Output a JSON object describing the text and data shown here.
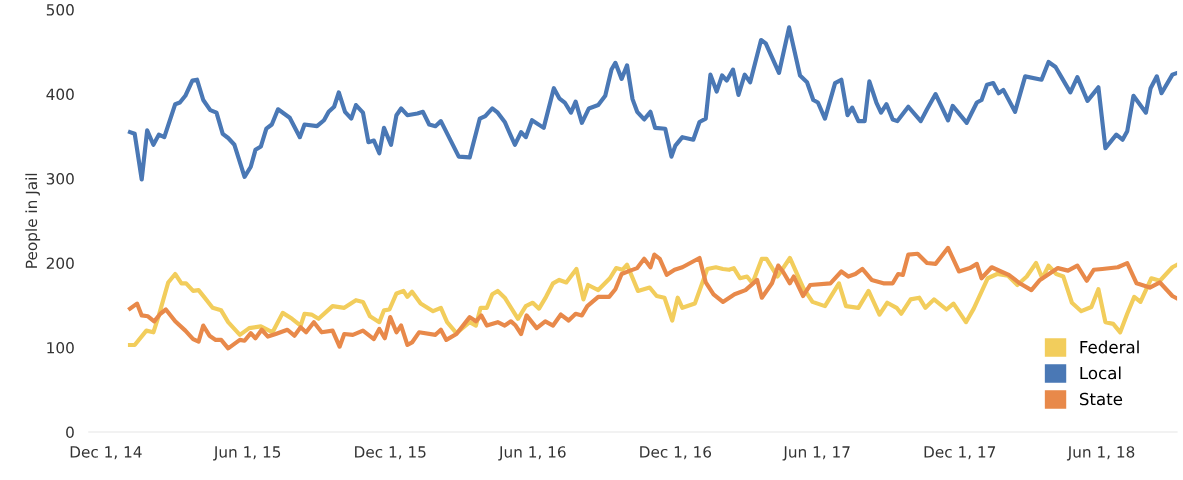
{
  "chart_data": {
    "type": "line",
    "ylabel": "People in Jail",
    "xlim": [
      "2014-11-09",
      "2018-09-06"
    ],
    "ylim": [
      0,
      500
    ],
    "yticks": [
      0,
      100,
      200,
      300,
      400,
      500
    ],
    "xticks": [
      {
        "value": "2014-12-01",
        "label": "Dec 1, 14"
      },
      {
        "value": "2015-06-01",
        "label": "Jun 1, 15"
      },
      {
        "value": "2015-12-01",
        "label": "Dec 1, 15"
      },
      {
        "value": "2016-06-01",
        "label": "Jun 1, 16"
      },
      {
        "value": "2016-12-01",
        "label": "Dec 1, 16"
      },
      {
        "value": "2017-06-01",
        "label": "Jun 1, 17"
      },
      {
        "value": "2017-12-01",
        "label": "Dec 1, 17"
      },
      {
        "value": "2018-06-01",
        "label": "Jun 1, 18"
      }
    ],
    "grid": false,
    "legend": "bottom right",
    "marker": "none",
    "line_style": "solid",
    "series": [
      {
        "name": "Federal",
        "color": "#f2cd5c",
        "x": [
          "2015-01-01",
          "2015-01-07",
          "2015-01-22",
          "2015-01-31",
          "2015-02-07",
          "2015-02-19",
          "2015-02-28",
          "2015-03-08",
          "2015-03-14",
          "2015-03-23",
          "2015-03-30",
          "2015-04-06",
          "2015-04-17",
          "2015-04-28",
          "2015-05-07",
          "2015-05-22",
          "2015-06-03",
          "2015-06-18",
          "2015-07-03",
          "2015-07-16",
          "2015-07-28",
          "2015-08-08",
          "2015-08-13",
          "2015-08-22",
          "2015-08-31",
          "2015-09-18",
          "2015-10-03",
          "2015-10-18",
          "2015-10-27",
          "2015-11-05",
          "2015-11-17",
          "2015-11-23",
          "2015-11-30",
          "2015-12-09",
          "2015-12-18",
          "2015-12-23",
          "2015-12-29",
          "2016-01-09",
          "2016-01-25",
          "2016-02-04",
          "2016-02-12",
          "2016-02-24",
          "2016-03-12",
          "2016-03-20",
          "2016-03-26",
          "2016-04-03",
          "2016-04-10",
          "2016-04-17",
          "2016-04-26",
          "2016-05-13",
          "2016-05-23",
          "2016-06-01",
          "2016-06-09",
          "2016-06-18",
          "2016-06-27",
          "2016-07-05",
          "2016-07-14",
          "2016-07-27",
          "2016-08-05",
          "2016-08-11",
          "2016-08-24",
          "2016-09-08",
          "2016-09-16",
          "2016-09-24",
          "2016-09-30",
          "2016-10-14",
          "2016-10-29",
          "2016-11-07",
          "2016-11-17",
          "2016-11-27",
          "2016-12-04",
          "2016-12-10",
          "2016-12-26",
          "2017-01-11",
          "2017-01-22",
          "2017-01-31",
          "2017-02-08",
          "2017-02-14",
          "2017-02-22",
          "2017-03-03",
          "2017-03-10",
          "2017-03-22",
          "2017-03-28",
          "2017-04-11",
          "2017-04-27",
          "2017-05-14",
          "2017-05-26",
          "2017-06-11",
          "2017-06-29",
          "2017-07-08",
          "2017-07-24",
          "2017-08-06",
          "2017-08-20",
          "2017-08-30",
          "2017-09-11",
          "2017-09-17",
          "2017-09-29",
          "2017-10-10",
          "2017-10-18",
          "2017-10-29",
          "2017-11-14",
          "2017-11-23",
          "2017-12-09",
          "2017-12-19",
          "2018-01-06",
          "2018-01-18",
          "2018-02-01",
          "2018-02-13",
          "2018-02-25",
          "2018-03-09",
          "2018-03-17",
          "2018-03-25",
          "2018-04-04",
          "2018-04-13",
          "2018-04-24",
          "2018-05-06",
          "2018-05-19",
          "2018-05-28",
          "2018-06-06",
          "2018-06-16",
          "2018-06-25",
          "2018-07-04",
          "2018-07-13",
          "2018-07-21",
          "2018-08-04",
          "2018-08-15",
          "2018-08-31",
          "2018-09-06"
        ],
        "values": [
          103,
          103,
          120,
          118,
          138,
          177,
          187,
          176,
          176,
          167,
          168,
          160,
          147,
          144,
          130,
          115,
          123,
          125,
          118,
          141,
          134,
          126,
          140,
          139,
          134,
          149,
          147,
          156,
          154,
          137,
          130,
          144,
          145,
          164,
          167,
          160,
          166,
          152,
          143,
          147,
          130,
          117,
          130,
          126,
          147,
          147,
          163,
          167,
          159,
          134,
          149,
          153,
          146,
          160,
          176,
          180,
          177,
          193,
          157,
          174,
          168,
          182,
          194,
          192,
          198,
          167,
          171,
          161,
          159,
          132,
          159,
          147,
          152,
          193,
          195,
          193,
          192,
          194,
          182,
          184,
          176,
          205,
          205,
          184,
          206,
          171,
          154,
          149,
          176,
          149,
          147,
          167,
          139,
          153,
          147,
          140,
          157,
          159,
          147,
          157,
          145,
          152,
          130,
          146,
          182,
          187,
          185,
          174,
          184,
          200,
          182,
          197,
          187,
          184,
          153,
          143,
          148,
          169,
          130,
          128,
          118,
          140,
          160,
          154,
          182,
          179,
          195,
          198
        ]
      },
      {
        "name": "Local",
        "color": "#4a78b5",
        "x": [
          "2015-01-01",
          "2015-01-07",
          "2015-01-16",
          "2015-01-23",
          "2015-01-31",
          "2015-02-07",
          "2015-02-14",
          "2015-02-28",
          "2015-03-06",
          "2015-03-13",
          "2015-03-22",
          "2015-03-28",
          "2015-04-05",
          "2015-04-14",
          "2015-04-22",
          "2015-04-30",
          "2015-05-07",
          "2015-05-15",
          "2015-05-28",
          "2015-06-05",
          "2015-06-11",
          "2015-06-18",
          "2015-06-25",
          "2015-07-02",
          "2015-07-10",
          "2015-07-25",
          "2015-08-07",
          "2015-08-13",
          "2015-08-29",
          "2015-09-07",
          "2015-09-13",
          "2015-09-20",
          "2015-09-26",
          "2015-10-04",
          "2015-10-12",
          "2015-10-18",
          "2015-10-27",
          "2015-11-03",
          "2015-11-10",
          "2015-11-17",
          "2015-11-23",
          "2015-12-02",
          "2015-12-09",
          "2015-12-15",
          "2015-12-23",
          "2016-01-05",
          "2016-01-12",
          "2016-01-20",
          "2016-01-28",
          "2016-02-04",
          "2016-02-27",
          "2016-03-12",
          "2016-03-25",
          "2016-04-01",
          "2016-04-10",
          "2016-04-17",
          "2016-04-26",
          "2016-05-09",
          "2016-05-17",
          "2016-05-23",
          "2016-05-31",
          "2016-06-15",
          "2016-06-28",
          "2016-07-05",
          "2016-07-12",
          "2016-07-20",
          "2016-07-26",
          "2016-08-03",
          "2016-08-12",
          "2016-08-24",
          "2016-09-02",
          "2016-09-10",
          "2016-09-15",
          "2016-09-23",
          "2016-09-30",
          "2016-10-07",
          "2016-10-13",
          "2016-10-22",
          "2016-10-30",
          "2016-11-05",
          "2016-11-18",
          "2016-11-26",
          "2016-12-01",
          "2016-12-10",
          "2016-12-24",
          "2017-01-01",
          "2017-01-09",
          "2017-01-15",
          "2017-01-23",
          "2017-01-30",
          "2017-02-05",
          "2017-02-13",
          "2017-02-20",
          "2017-02-28",
          "2017-03-07",
          "2017-03-21",
          "2017-03-27",
          "2017-04-13",
          "2017-04-26",
          "2017-05-10",
          "2017-05-19",
          "2017-05-27",
          "2017-06-02",
          "2017-06-11",
          "2017-06-24",
          "2017-07-02",
          "2017-07-10",
          "2017-07-16",
          "2017-07-24",
          "2017-08-01",
          "2017-08-07",
          "2017-08-16",
          "2017-08-22",
          "2017-08-29",
          "2017-09-06",
          "2017-09-12",
          "2017-09-26",
          "2017-10-12",
          "2017-10-20",
          "2017-10-31",
          "2017-11-16",
          "2017-11-22",
          "2017-12-10",
          "2017-12-23",
          "2017-12-29",
          "2018-01-05",
          "2018-01-13",
          "2018-01-20",
          "2018-01-26",
          "2018-02-10",
          "2018-02-23",
          "2018-03-16",
          "2018-03-25",
          "2018-04-03",
          "2018-04-10",
          "2018-04-22",
          "2018-05-01",
          "2018-05-14",
          "2018-05-28",
          "2018-06-06",
          "2018-06-20",
          "2018-06-28",
          "2018-07-04",
          "2018-07-12",
          "2018-07-28",
          "2018-08-03",
          "2018-08-11",
          "2018-08-17",
          "2018-08-31",
          "2018-09-06"
        ],
        "values": [
          355,
          353,
          299,
          357,
          340,
          352,
          349,
          388,
          390,
          398,
          416,
          417,
          393,
          381,
          378,
          353,
          348,
          340,
          302,
          314,
          334,
          338,
          359,
          364,
          382,
          372,
          349,
          364,
          362,
          369,
          379,
          385,
          402,
          379,
          371,
          387,
          378,
          343,
          345,
          330,
          360,
          340,
          375,
          383,
          375,
          377,
          379,
          364,
          362,
          368,
          326,
          325,
          371,
          374,
          383,
          378,
          367,
          340,
          355,
          349,
          369,
          360,
          407,
          395,
          390,
          378,
          391,
          366,
          383,
          387,
          398,
          429,
          437,
          418,
          434,
          394,
          379,
          370,
          379,
          360,
          359,
          326,
          339,
          349,
          346,
          367,
          371,
          423,
          403,
          422,
          416,
          429,
          399,
          423,
          414,
          464,
          460,
          425,
          479,
          422,
          414,
          393,
          390,
          371,
          413,
          417,
          375,
          384,
          368,
          368,
          415,
          390,
          378,
          388,
          370,
          368,
          385,
          368,
          382,
          400,
          369,
          386,
          366,
          390,
          393,
          411,
          413,
          401,
          405,
          379,
          421,
          417,
          438,
          432,
          421,
          402,
          420,
          392,
          408,
          336,
          352,
          346,
          356,
          398,
          378,
          407,
          421,
          401,
          423,
          425
        ]
      },
      {
        "name": "State",
        "color": "#e8894a",
        "x": [
          "2015-01-01",
          "2015-01-10",
          "2015-01-16",
          "2015-01-24",
          "2015-02-01",
          "2015-02-09",
          "2015-02-16",
          "2015-02-28",
          "2015-03-13",
          "2015-03-23",
          "2015-03-30",
          "2015-04-05",
          "2015-04-13",
          "2015-04-21",
          "2015-04-28",
          "2015-05-07",
          "2015-05-22",
          "2015-05-28",
          "2015-06-05",
          "2015-06-11",
          "2015-06-19",
          "2015-06-27",
          "2015-07-07",
          "2015-07-22",
          "2015-07-31",
          "2015-08-08",
          "2015-08-15",
          "2015-08-25",
          "2015-09-04",
          "2015-09-18",
          "2015-09-27",
          "2015-10-03",
          "2015-10-14",
          "2015-10-27",
          "2015-11-10",
          "2015-11-17",
          "2015-11-24",
          "2015-12-01",
          "2015-12-09",
          "2015-12-15",
          "2015-12-23",
          "2015-12-29",
          "2016-01-07",
          "2016-01-28",
          "2016-02-04",
          "2016-02-11",
          "2016-02-24",
          "2016-03-12",
          "2016-03-20",
          "2016-03-27",
          "2016-04-03",
          "2016-04-17",
          "2016-04-26",
          "2016-05-04",
          "2016-05-10",
          "2016-05-17",
          "2016-05-24",
          "2016-06-06",
          "2016-06-17",
          "2016-06-27",
          "2016-07-07",
          "2016-07-17",
          "2016-07-26",
          "2016-08-03",
          "2016-08-10",
          "2016-08-24",
          "2016-09-07",
          "2016-09-15",
          "2016-09-23",
          "2016-10-04",
          "2016-10-13",
          "2016-10-22",
          "2016-10-30",
          "2016-11-04",
          "2016-11-11",
          "2016-11-20",
          "2016-11-30",
          "2016-12-10",
          "2017-01-01",
          "2017-01-09",
          "2017-01-19",
          "2017-01-31",
          "2017-02-15",
          "2017-03-01",
          "2017-03-16",
          "2017-03-22",
          "2017-04-04",
          "2017-04-12",
          "2017-04-18",
          "2017-04-27",
          "2017-05-02",
          "2017-05-14",
          "2017-05-23",
          "2017-06-18",
          "2017-07-02",
          "2017-07-11",
          "2017-07-20",
          "2017-07-29",
          "2017-08-10",
          "2017-08-25",
          "2017-09-06",
          "2017-09-13",
          "2017-09-19",
          "2017-09-26",
          "2017-10-08",
          "2017-10-20",
          "2017-10-31",
          "2017-11-16",
          "2017-11-30",
          "2017-12-14",
          "2017-12-23",
          "2017-12-29",
          "2018-01-11",
          "2018-01-23",
          "2018-02-02",
          "2018-02-16",
          "2018-03-03",
          "2018-03-14",
          "2018-04-06",
          "2018-04-19",
          "2018-05-01",
          "2018-05-13",
          "2018-05-22",
          "2018-06-02",
          "2018-06-22",
          "2018-07-04",
          "2018-07-16",
          "2018-08-02",
          "2018-08-15",
          "2018-08-31",
          "2018-09-06"
        ],
        "values": [
          146,
          152,
          138,
          137,
          131,
          140,
          145,
          131,
          120,
          110,
          107,
          126,
          114,
          109,
          109,
          99,
          109,
          108,
          117,
          111,
          121,
          113,
          116,
          121,
          114,
          124,
          118,
          130,
          118,
          120,
          101,
          116,
          115,
          120,
          110,
          122,
          111,
          136,
          118,
          126,
          103,
          106,
          118,
          115,
          121,
          109,
          116,
          136,
          131,
          138,
          126,
          130,
          126,
          131,
          126,
          116,
          138,
          123,
          131,
          126,
          139,
          132,
          140,
          138,
          149,
          160,
          160,
          169,
          187,
          191,
          194,
          205,
          195,
          210,
          205,
          186,
          192,
          195,
          206,
          177,
          163,
          154,
          163,
          168,
          180,
          159,
          176,
          197,
          190,
          176,
          184,
          161,
          174,
          176,
          190,
          184,
          187,
          193,
          180,
          176,
          176,
          187,
          186,
          210,
          211,
          200,
          199,
          218,
          190,
          194,
          199,
          182,
          195,
          190,
          186,
          176,
          168,
          180,
          194,
          191,
          197,
          179,
          192,
          193,
          195,
          200,
          176,
          171,
          177,
          161,
          158
        ]
      }
    ]
  }
}
